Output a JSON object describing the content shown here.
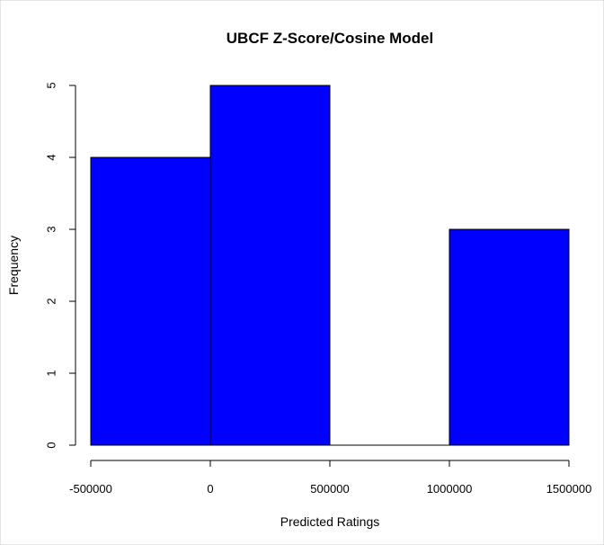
{
  "chart_data": {
    "type": "bar",
    "title": "UBCF Z-Score/Cosine Model",
    "xlabel": "Predicted Ratings",
    "ylabel": "Frequency",
    "bins": [
      {
        "start": -500000,
        "end": 0,
        "count": 4
      },
      {
        "start": 0,
        "end": 500000,
        "count": 5
      },
      {
        "start": 500000,
        "end": 1000000,
        "count": 0
      },
      {
        "start": 1000000,
        "end": 1500000,
        "count": 3
      }
    ],
    "x_ticks": [
      -500000,
      0,
      500000,
      1000000,
      1500000
    ],
    "x_tick_labels": [
      "-500000",
      "0",
      "500000",
      "1000000",
      "1500000"
    ],
    "y_ticks": [
      0,
      1,
      2,
      3,
      4,
      5
    ],
    "y_tick_labels": [
      "0",
      "1",
      "2",
      "3",
      "4",
      "5"
    ],
    "xlim": [
      -500000,
      1500000
    ],
    "ylim": [
      0,
      5
    ],
    "grid": false,
    "bar_color": "#0000ff"
  }
}
